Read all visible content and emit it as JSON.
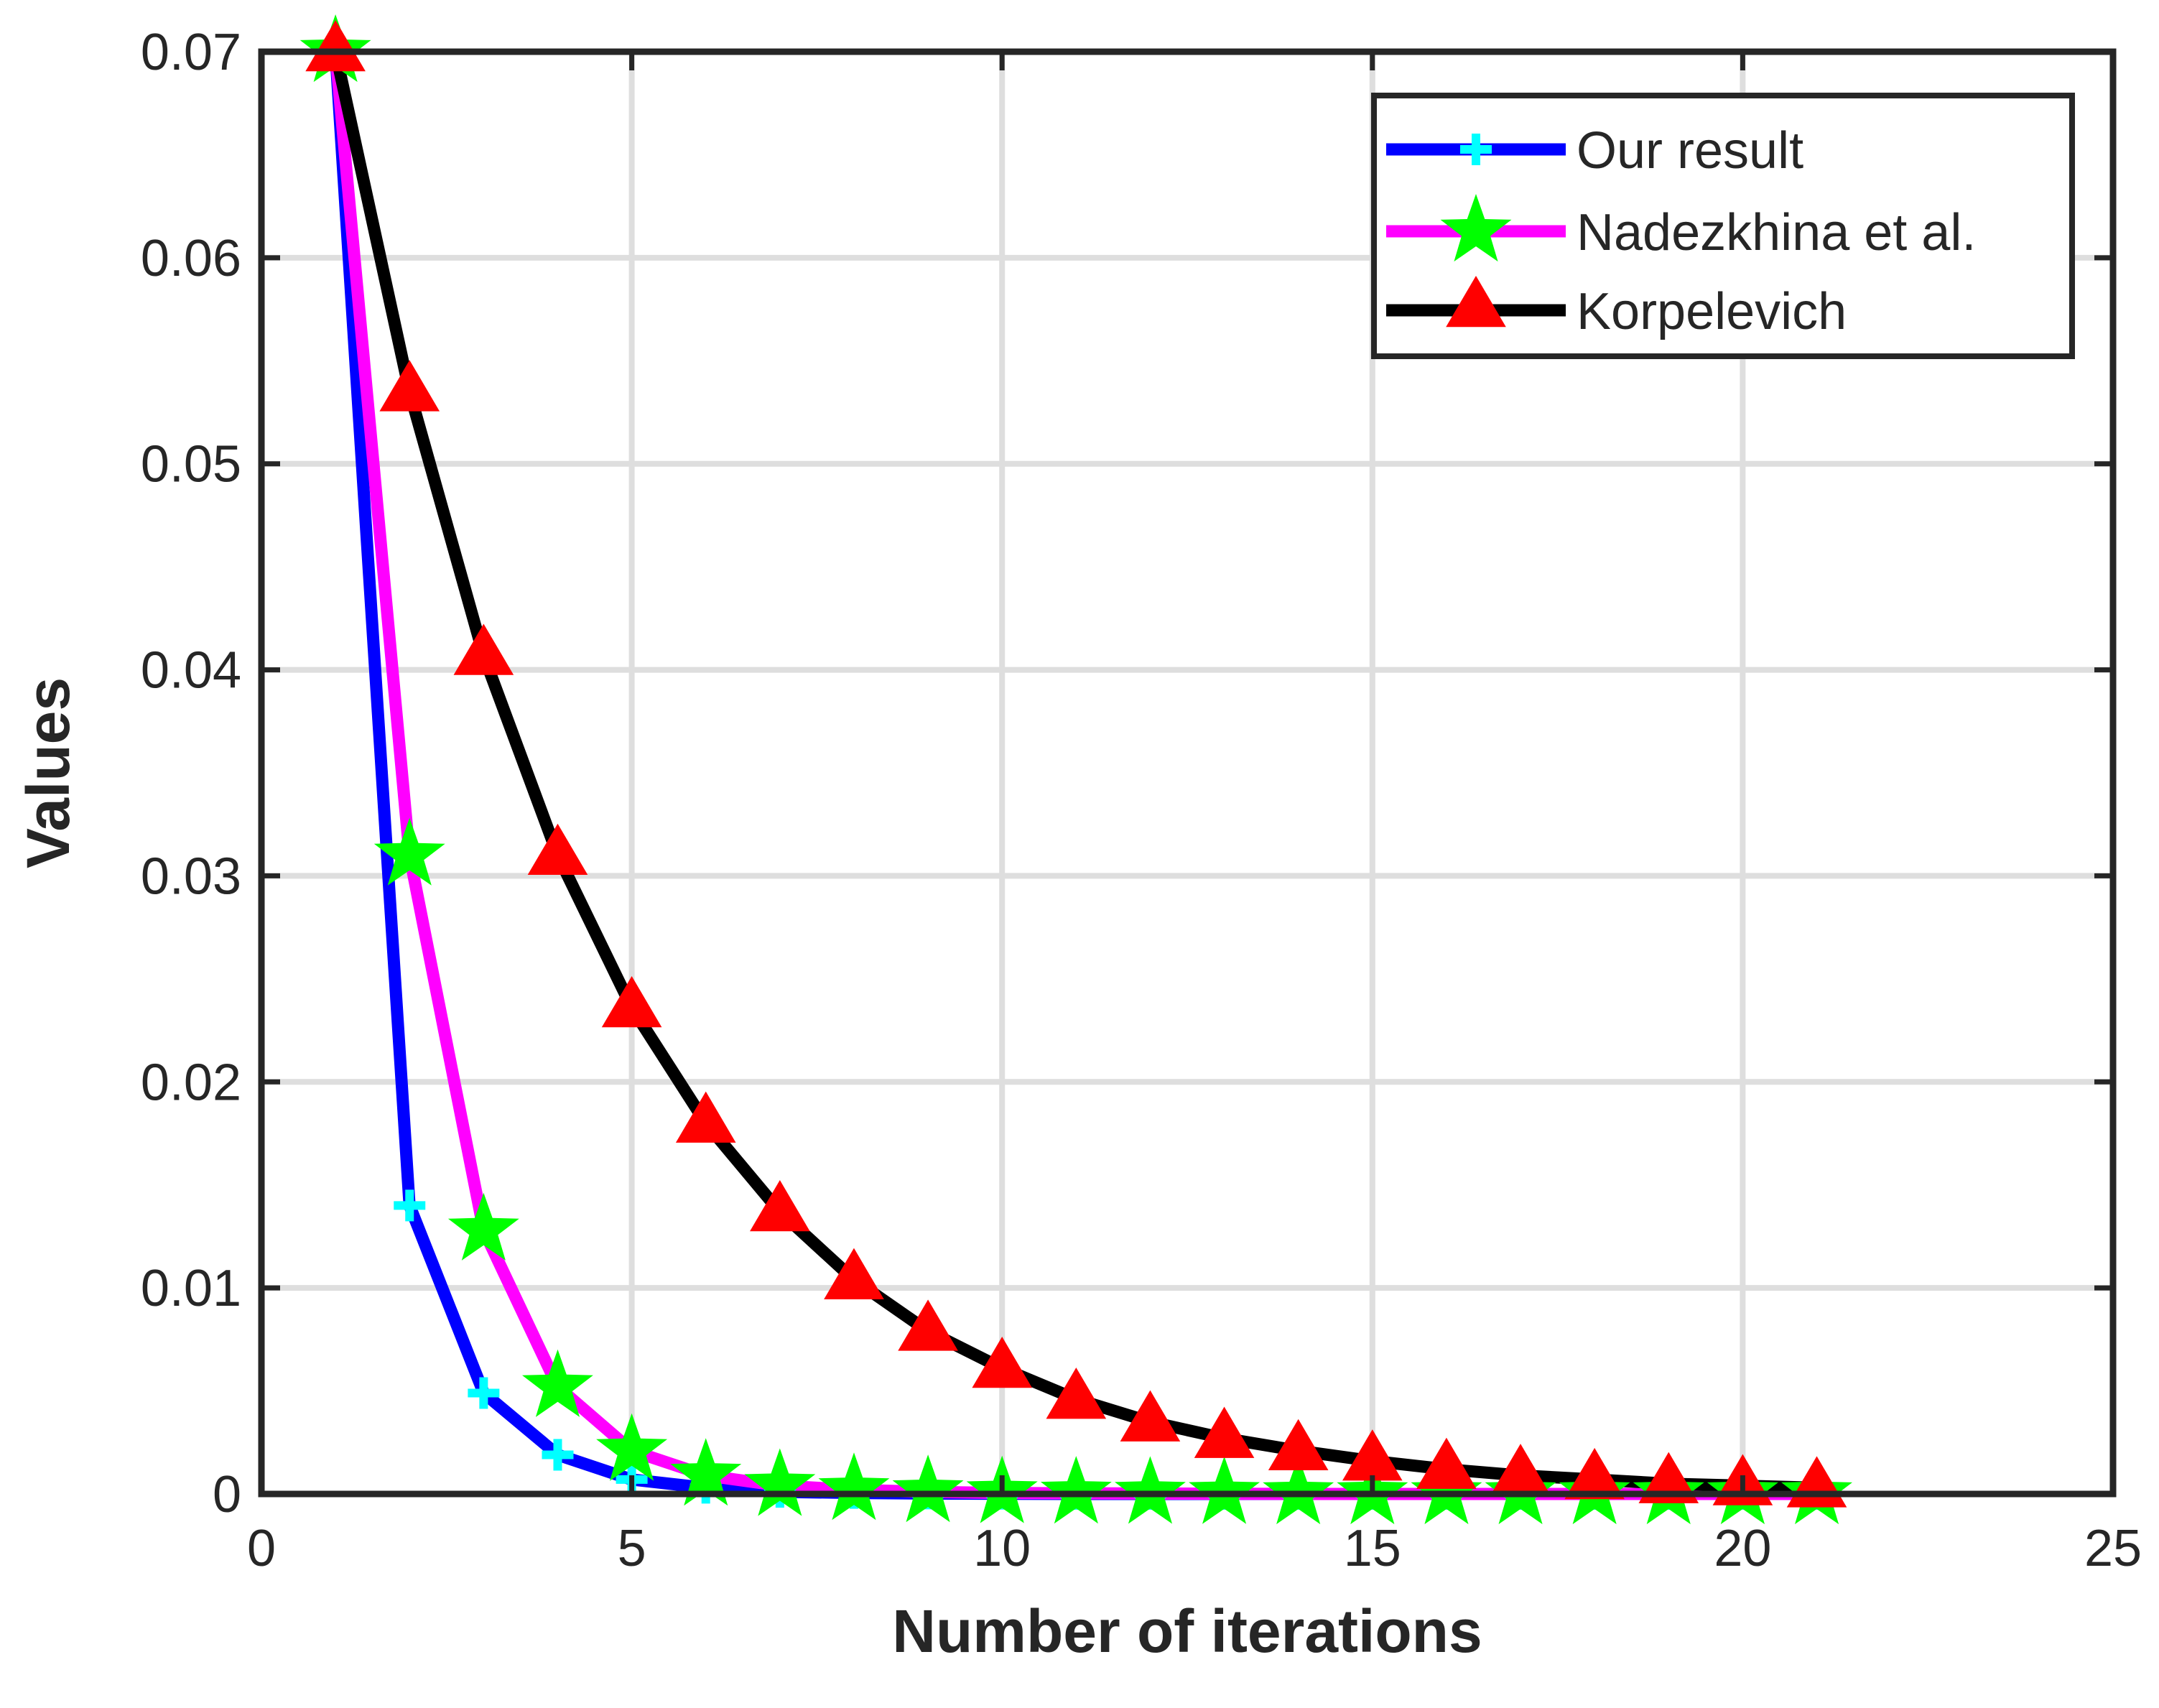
{
  "chart_data": {
    "type": "line",
    "xlabel": "Number of iterations",
    "ylabel": "Values",
    "xlim": [
      0,
      25
    ],
    "ylim": [
      0,
      0.07
    ],
    "xticks": [
      0,
      5,
      10,
      15,
      20,
      25
    ],
    "yticks": [
      0,
      0.01,
      0.02,
      0.03,
      0.04,
      0.05,
      0.06,
      0.07
    ],
    "xtick_labels": [
      "0",
      "5",
      "10",
      "15",
      "20",
      "25"
    ],
    "ytick_labels": [
      "0",
      "0.01",
      "0.02",
      "0.03",
      "0.04",
      "0.05",
      "0.06",
      "0.07"
    ],
    "grid": true,
    "legend_position": "top-right",
    "series": [
      {
        "name": "Our result",
        "line_color": "#0000ff",
        "marker": "plus",
        "marker_color": "#00ffff",
        "x": [
          1,
          2,
          3,
          4,
          5,
          6,
          7,
          8,
          9,
          10,
          11,
          12,
          13,
          14,
          15,
          16,
          17,
          18,
          19,
          20,
          21
        ],
        "y": [
          0.07,
          0.014,
          0.0049,
          0.0019,
          0.0007,
          0.0003,
          0.0001,
          5e-05,
          2e-05,
          1e-05,
          0,
          0,
          0,
          0,
          0,
          0,
          0,
          0,
          0,
          0,
          0
        ]
      },
      {
        "name": "Nadezkhina et al.",
        "line_color": "#ff00ff",
        "marker": "star",
        "marker_color": "#00ff00",
        "x": [
          1,
          2,
          3,
          4,
          5,
          6,
          7,
          8,
          9,
          10,
          11,
          12,
          13,
          14,
          15,
          16,
          17,
          18,
          19,
          20,
          21
        ],
        "y": [
          0.07,
          0.031,
          0.0128,
          0.0052,
          0.0021,
          0.0009,
          0.0004,
          0.0002,
          0.0001,
          5e-05,
          3e-05,
          2e-05,
          1e-05,
          0,
          0,
          0,
          0,
          0,
          0,
          0,
          0
        ]
      },
      {
        "name": "Korpelevich",
        "line_color": "#000000",
        "marker": "triangle",
        "marker_color": "#ff0000",
        "x": [
          1,
          2,
          3,
          4,
          5,
          6,
          7,
          8,
          9,
          10,
          11,
          12,
          13,
          14,
          15,
          16,
          17,
          18,
          19,
          20,
          21
        ],
        "y": [
          0.07,
          0.0535,
          0.0407,
          0.031,
          0.0236,
          0.018,
          0.0137,
          0.0104,
          0.0079,
          0.0061,
          0.0046,
          0.0035,
          0.0027,
          0.0021,
          0.0016,
          0.0012,
          0.0009,
          0.0007,
          0.0005,
          0.0004,
          0.0003
        ]
      }
    ]
  }
}
